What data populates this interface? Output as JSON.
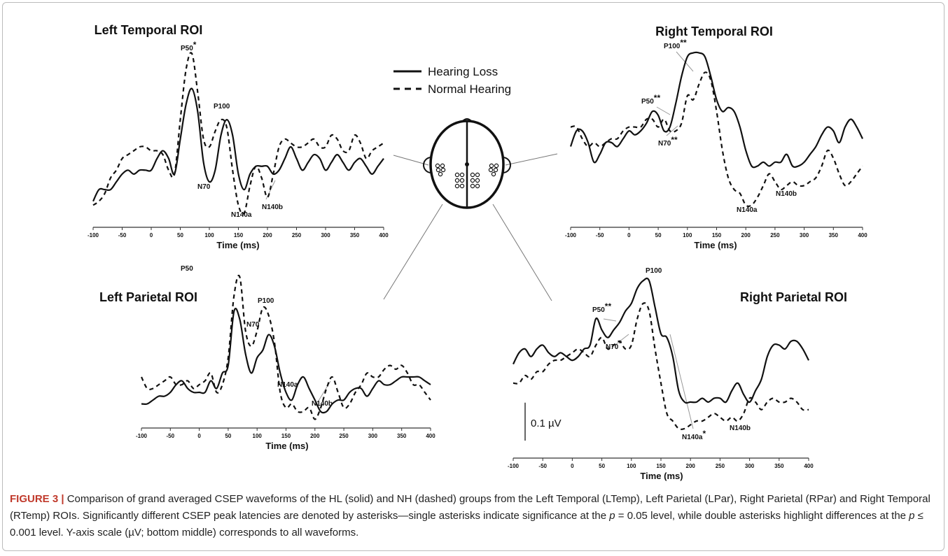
{
  "chart_data": [
    {
      "type": "line",
      "title": "Left Temporal ROI",
      "xlabel": "Time (ms)",
      "x": [
        -100,
        -90,
        -80,
        -70,
        -60,
        -50,
        -40,
        -30,
        -20,
        -10,
        0,
        10,
        20,
        30,
        40,
        50,
        60,
        70,
        80,
        90,
        100,
        110,
        120,
        130,
        140,
        150,
        160,
        170,
        180,
        190,
        200,
        210,
        220,
        230,
        240,
        250,
        260,
        270,
        280,
        290,
        300,
        310,
        320,
        330,
        340,
        350,
        360,
        370,
        380,
        390,
        400
      ],
      "xlim": [
        -100,
        400
      ],
      "xticks": [
        -100,
        -50,
        0,
        50,
        100,
        150,
        200,
        250,
        300,
        350,
        400
      ],
      "ylim": [
        -0.16,
        0.29
      ],
      "series": [
        {
          "name": "Hearing Loss",
          "color": "#111111",
          "dashed": false,
          "values": [
            -0.12,
            -0.09,
            -0.09,
            -0.09,
            -0.07,
            -0.05,
            -0.04,
            -0.05,
            -0.04,
            -0.04,
            -0.04,
            -0.01,
            0.01,
            -0.01,
            -0.05,
            0.04,
            0.13,
            0.17,
            0.11,
            -0.02,
            -0.07,
            -0.04,
            0.05,
            0.09,
            0.05,
            -0.05,
            -0.09,
            -0.05,
            -0.03,
            -0.03,
            -0.03,
            -0.05,
            -0.04,
            -0.01,
            0.02,
            -0.01,
            -0.04,
            -0.02,
            0,
            -0.01,
            -0.04,
            -0.02,
            0,
            -0.02,
            -0.04,
            -0.02,
            -0.01,
            -0.03,
            -0.05,
            -0.03,
            -0.01
          ]
        },
        {
          "name": "Normal Hearing",
          "color": "#111111",
          "dashed": true,
          "values": [
            -0.13,
            -0.12,
            -0.1,
            -0.06,
            -0.04,
            -0.01,
            0,
            0.01,
            0.02,
            0.02,
            0.01,
            0.01,
            0,
            -0.04,
            -0.05,
            0.09,
            0.22,
            0.26,
            0.16,
            0.04,
            0.02,
            0.06,
            0.09,
            0.07,
            -0.04,
            -0.13,
            -0.15,
            -0.08,
            -0.03,
            -0.06,
            -0.11,
            -0.05,
            0.02,
            0.04,
            0.03,
            0.02,
            0.02,
            0.03,
            0.04,
            0.02,
            0.02,
            0.05,
            0.04,
            0.01,
            0.01,
            0.05,
            0.03,
            -0.01,
            0.01,
            0.02,
            0.03
          ]
        }
      ],
      "annotations": [
        {
          "label": "P50",
          "sig": "*"
        },
        {
          "label": "P100"
        },
        {
          "label": "N70"
        },
        {
          "label": "N140a"
        },
        {
          "label": "N140b"
        }
      ]
    },
    {
      "type": "line",
      "title": "Right Temporal ROI",
      "xlabel": "Time (ms)",
      "x": [
        -100,
        -90,
        -80,
        -70,
        -60,
        -50,
        -40,
        -30,
        -20,
        -10,
        0,
        10,
        20,
        30,
        40,
        50,
        60,
        70,
        80,
        90,
        100,
        110,
        120,
        130,
        140,
        150,
        160,
        170,
        180,
        190,
        200,
        210,
        220,
        230,
        240,
        250,
        260,
        270,
        280,
        290,
        300,
        310,
        320,
        330,
        340,
        350,
        360,
        370,
        380,
        390,
        400
      ],
      "xlim": [
        -100,
        400
      ],
      "xticks": [
        -100,
        -50,
        0,
        50,
        100,
        150,
        200,
        250,
        300,
        350,
        400
      ],
      "ylim": [
        -0.18,
        0.25
      ],
      "series": [
        {
          "name": "Hearing Loss",
          "color": "#111111",
          "dashed": false,
          "values": [
            0,
            0.04,
            0.04,
            0.01,
            -0.04,
            -0.02,
            0.01,
            0.01,
            0,
            0.02,
            0.04,
            0.03,
            0.04,
            0.06,
            0.09,
            0.08,
            0.04,
            0.05,
            0.11,
            0.18,
            0.23,
            0.24,
            0.24,
            0.23,
            0.18,
            0.12,
            0.09,
            0.1,
            0.09,
            0.05,
            -0.01,
            -0.05,
            -0.05,
            -0.04,
            -0.05,
            -0.04,
            -0.04,
            -0.02,
            -0.05,
            -0.05,
            -0.04,
            -0.02,
            0,
            0.03,
            0.05,
            0.04,
            0.01,
            0.05,
            0.07,
            0.05,
            0.02
          ]
        },
        {
          "name": "Normal Hearing",
          "color": "#111111",
          "dashed": true,
          "values": [
            0.05,
            0.05,
            0.02,
            0,
            0.01,
            0,
            0.01,
            0.02,
            0.02,
            0.04,
            0.05,
            0.05,
            0.05,
            0.07,
            0.07,
            0.05,
            0.07,
            0.04,
            0.04,
            0.06,
            0.13,
            0.12,
            0.16,
            0.19,
            0.17,
            0.09,
            -0.01,
            -0.08,
            -0.11,
            -0.12,
            -0.15,
            -0.15,
            -0.13,
            -0.1,
            -0.07,
            -0.09,
            -0.11,
            -0.1,
            -0.09,
            -0.1,
            -0.1,
            -0.09,
            -0.08,
            -0.05,
            -0.01,
            -0.03,
            -0.07,
            -0.1,
            -0.09,
            -0.07,
            -0.05
          ]
        }
      ],
      "annotations": [
        {
          "label": "P50",
          "sig": "**"
        },
        {
          "label": "P100",
          "sig": "**"
        },
        {
          "label": "N70",
          "sig": "**"
        },
        {
          "label": "N140a"
        },
        {
          "label": "N140b"
        }
      ]
    },
    {
      "type": "line",
      "title": "Left Parietal ROI",
      "xlabel": "Time (ms)",
      "x": [
        -100,
        -90,
        -80,
        -70,
        -60,
        -50,
        -40,
        -30,
        -20,
        -10,
        0,
        10,
        20,
        30,
        40,
        50,
        60,
        70,
        80,
        90,
        100,
        110,
        120,
        130,
        140,
        150,
        160,
        170,
        180,
        190,
        200,
        210,
        220,
        230,
        240,
        250,
        260,
        270,
        280,
        290,
        300,
        310,
        320,
        330,
        340,
        350,
        360,
        370,
        380,
        390,
        400
      ],
      "xlim": [
        -100,
        400
      ],
      "xticks": [
        -100,
        -50,
        0,
        50,
        100,
        150,
        200,
        250,
        300,
        350,
        400
      ],
      "ylim": [
        -0.08,
        0.32
      ],
      "series": [
        {
          "name": "Hearing Loss",
          "color": "#111111",
          "dashed": false,
          "values": [
            -0.03,
            -0.03,
            -0.02,
            -0.01,
            -0.01,
            0,
            0.02,
            0.03,
            0.01,
            0,
            0,
            0,
            0.03,
            0.01,
            0.05,
            0.07,
            0.21,
            0.19,
            0.1,
            0.05,
            0.09,
            0.11,
            0.15,
            0.12,
            0.05,
            0,
            -0.02,
            0.02,
            0.04,
            0.01,
            -0.02,
            -0.05,
            -0.05,
            -0.03,
            -0.02,
            -0.02,
            0,
            0.01,
            0.01,
            -0.01,
            0.01,
            0.03,
            0.02,
            0.02,
            0.03,
            0.04,
            0.04,
            0.04,
            0.04,
            0.03,
            0.02
          ]
        },
        {
          "name": "Normal Hearing",
          "color": "#111111",
          "dashed": true,
          "values": [
            0.04,
            0.01,
            0.01,
            0.02,
            0.03,
            0.04,
            0.02,
            0.02,
            0.03,
            0.01,
            0.02,
            0.03,
            0.05,
            0,
            0.02,
            0.09,
            0.25,
            0.3,
            0.16,
            0.12,
            0.16,
            0.22,
            0.2,
            0.13,
            0,
            -0.04,
            -0.03,
            -0.05,
            -0.05,
            -0.04,
            -0.07,
            -0.04,
            0.01,
            0.04,
            0,
            -0.04,
            -0.03,
            0,
            0.02,
            0.05,
            0.04,
            0.04,
            0.06,
            0.07,
            0.06,
            0.07,
            0.05,
            0.02,
            0.02,
            0,
            -0.02
          ]
        }
      ],
      "annotations": [
        {
          "label": "P50"
        },
        {
          "label": "P100"
        },
        {
          "label": "N70"
        },
        {
          "label": "N140a"
        },
        {
          "label": "N140b"
        }
      ]
    },
    {
      "type": "line",
      "title": "Right Parietal ROI",
      "xlabel": "Time (ms)",
      "x": [
        -100,
        -90,
        -80,
        -70,
        -60,
        -50,
        -40,
        -30,
        -20,
        -10,
        0,
        10,
        20,
        30,
        40,
        50,
        60,
        70,
        80,
        90,
        100,
        110,
        120,
        130,
        140,
        150,
        160,
        170,
        180,
        190,
        200,
        210,
        220,
        230,
        240,
        250,
        260,
        270,
        280,
        290,
        300,
        310,
        320,
        330,
        340,
        350,
        360,
        370,
        380,
        390,
        400
      ],
      "xlim": [
        -100,
        400
      ],
      "xticks": [
        -100,
        -50,
        0,
        50,
        100,
        150,
        200,
        250,
        300,
        350,
        400
      ],
      "ylim": [
        -0.22,
        0.25
      ],
      "series": [
        {
          "name": "Hearing Loss",
          "color": "#111111",
          "dashed": false,
          "values": [
            0,
            0.03,
            0.04,
            0.02,
            0.04,
            0.05,
            0.03,
            0.02,
            0.03,
            0.02,
            0.01,
            0.02,
            0.04,
            0.05,
            0.12,
            0.09,
            0.07,
            0.09,
            0.11,
            0.14,
            0.16,
            0.2,
            0.22,
            0.22,
            0.15,
            0.08,
            0.07,
            0.02,
            -0.07,
            -0.1,
            -0.1,
            -0.1,
            -0.09,
            -0.1,
            -0.09,
            -0.09,
            -0.1,
            -0.07,
            -0.05,
            -0.08,
            -0.1,
            -0.07,
            -0.04,
            0.02,
            0.05,
            0.05,
            0.04,
            0.06,
            0.06,
            0.04,
            0.01
          ]
        },
        {
          "name": "Normal Hearing",
          "color": "#111111",
          "dashed": true,
          "values": [
            -0.05,
            -0.05,
            -0.03,
            -0.04,
            -0.02,
            -0.02,
            0,
            0.01,
            0.01,
            0.02,
            0.03,
            0.04,
            0.03,
            0.02,
            0.05,
            0.07,
            0.04,
            0.05,
            0.06,
            0.04,
            0.05,
            0.12,
            0.16,
            0.14,
            0.04,
            -0.05,
            -0.13,
            -0.15,
            -0.17,
            -0.17,
            -0.16,
            -0.15,
            -0.15,
            -0.14,
            -0.13,
            -0.14,
            -0.15,
            -0.14,
            -0.15,
            -0.13,
            -0.09,
            -0.1,
            -0.12,
            -0.1,
            -0.09,
            -0.1,
            -0.1,
            -0.09,
            -0.1,
            -0.12,
            -0.12
          ]
        }
      ],
      "annotations": [
        {
          "label": "P50",
          "sig": "**"
        },
        {
          "label": "P100"
        },
        {
          "label": "N70",
          "sig": "*"
        },
        {
          "label": "N140a",
          "sig": "*"
        },
        {
          "label": "N140b"
        }
      ]
    }
  ],
  "scale_bar": {
    "value": 0.1,
    "label": "0.1 µV"
  },
  "caption": {
    "label": "FIGURE 3 |",
    "text_1": "Comparison of grand averaged CSEP waveforms of the HL (solid) and NH (dashed) groups from the Left Temporal (LTemp), Left Parietal (LPar), Right Parietal (RPar) and Right Temporal (RTemp) ROIs. Significantly different CSEP peak latencies are denoted by asterisks—single asterisks indicate significance at the ",
    "p_1": "p",
    "text_2": " = 0.05 level, while double asterisks highlight differences at the ",
    "p_2": "p",
    "text_3": " ≤ 0.001 level. Y-axis scale (µV; bottom middle) corresponds to all waveforms."
  }
}
